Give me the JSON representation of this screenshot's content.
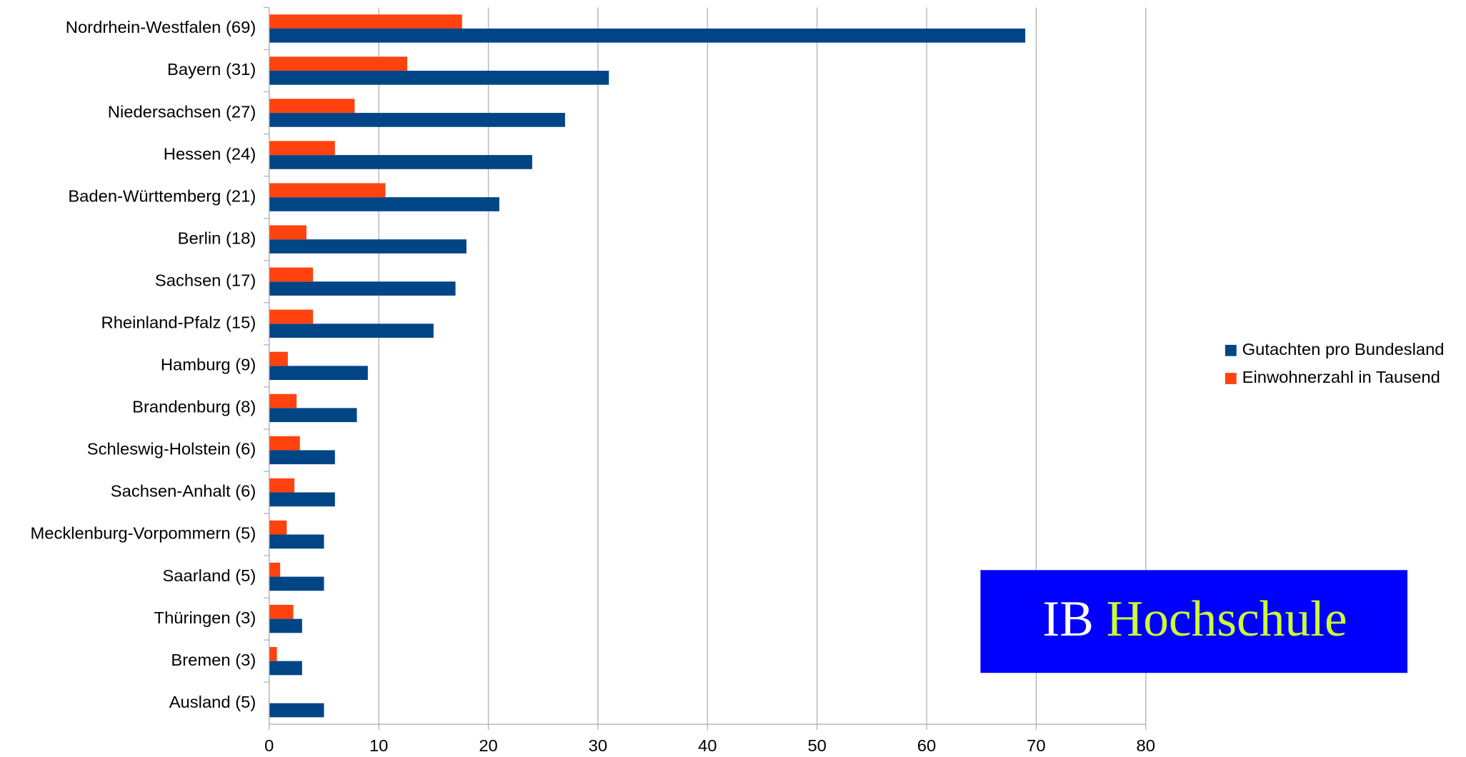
{
  "chart_data": {
    "type": "bar",
    "orientation": "horizontal",
    "categories": [
      "Nordrhein-Westfalen (69)",
      "Bayern (31)",
      "Niedersachsen (27)",
      "Hessen (24)",
      "Baden-Württemberg (21)",
      "Berlin (18)",
      "Sachsen (17)",
      "Rheinland-Pfalz (15)",
      "Hamburg (9)",
      "Brandenburg (8)",
      "Schleswig-Holstein (6)",
      "Sachsen-Anhalt (6)",
      "Mecklenburg-Vorpommern (5)",
      "Saarland (5)",
      "Thüringen (3)",
      "Bremen (3)",
      "Ausland (5)"
    ],
    "series": [
      {
        "name": "Gutachten pro Bundesland",
        "color": "#004586",
        "values": [
          69,
          31,
          27,
          24,
          21,
          18,
          17,
          15,
          9,
          8,
          6,
          6,
          5,
          5,
          3,
          3,
          5
        ]
      },
      {
        "name": "Einwohnerzahl in Tausend",
        "color": "#ff420e",
        "values": [
          17.6,
          12.6,
          7.8,
          6.0,
          10.6,
          3.4,
          4.0,
          4.0,
          1.7,
          2.5,
          2.8,
          2.3,
          1.6,
          1.0,
          2.2,
          0.7,
          null
        ]
      }
    ],
    "xlim": [
      0,
      80
    ],
    "xticks": [
      0,
      10,
      20,
      30,
      40,
      50,
      60,
      70,
      80
    ],
    "grid": true,
    "legend": "right",
    "logo": {
      "parts": [
        "IB",
        "Hochschule"
      ],
      "background": "#0000ff",
      "colors": [
        "#ffffff",
        "#ccff33"
      ]
    }
  }
}
